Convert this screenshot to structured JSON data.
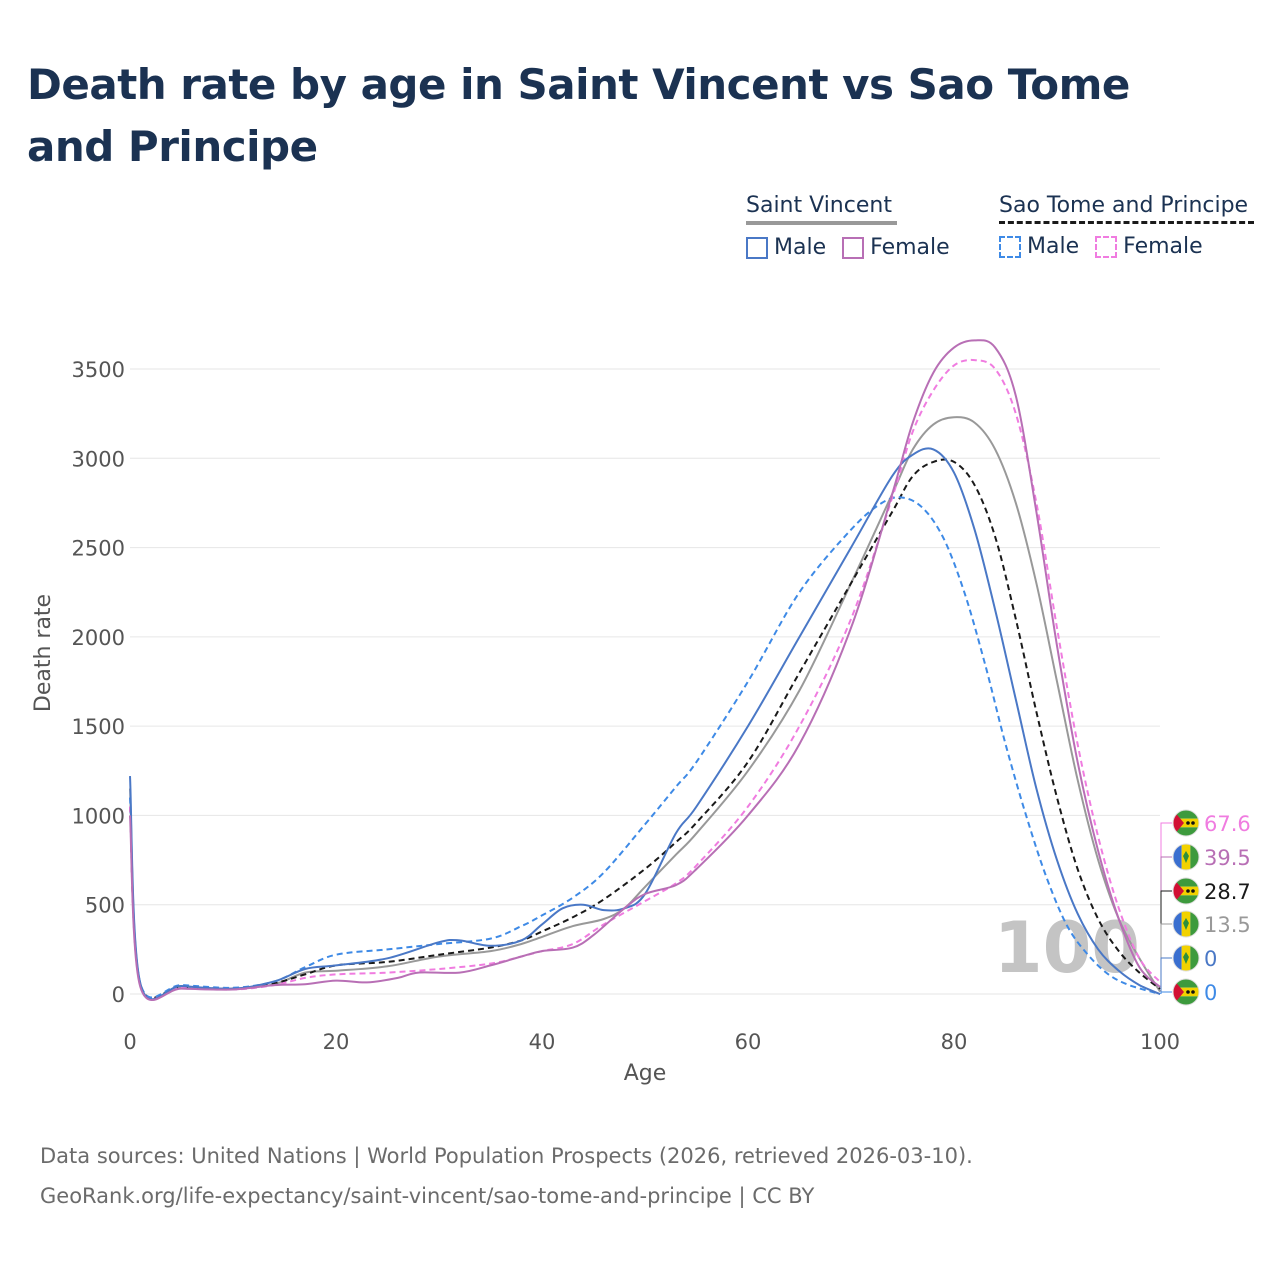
{
  "title": "Death rate by age in Saint Vincent vs Sao Tome and Principe",
  "legend": {
    "group1": {
      "title": "Saint Vincent",
      "male": "Male",
      "female": "Female"
    },
    "group2": {
      "title": "Sao Tome and Principe",
      "male": "Male",
      "female": "Female"
    }
  },
  "footer": {
    "line1": "Data sources: United Nations | World Population Prospects (2026, retrieved 2026-03-10).",
    "line2": "GeoRank.org/life-expectancy/saint-vincent/sao-tome-and-principe | CC BY"
  },
  "watermark": "100",
  "colors": {
    "sv_male": "#4a78c6",
    "sv_female": "#b86fb5",
    "sv_total": "#999999",
    "st_male": "#3e8ae6",
    "st_female": "#f07ce0",
    "st_total": "#1a1a1a",
    "title": "#1b3252"
  },
  "chart_data": {
    "type": "line",
    "title": "Death rate by age in Saint Vincent vs Sao Tome and Principe",
    "xlabel": "Age",
    "ylabel": "Death rate",
    "xlim": [
      0,
      100
    ],
    "ylim": [
      0,
      3650
    ],
    "x_ticks": [
      0,
      20,
      40,
      60,
      80,
      100
    ],
    "y_ticks": [
      0,
      500,
      1000,
      1500,
      2000,
      2500,
      3000,
      3500
    ],
    "series": [
      {
        "key": "sv_total",
        "name": "Saint Vincent",
        "style": "solid",
        "points": [
          [
            0,
            1150
          ],
          [
            1,
            55
          ],
          [
            5,
            40
          ],
          [
            10,
            30
          ],
          [
            14,
            55
          ],
          [
            17,
            120
          ],
          [
            20,
            130
          ],
          [
            25,
            155
          ],
          [
            30,
            210
          ],
          [
            35,
            240
          ],
          [
            38,
            280
          ],
          [
            40,
            320
          ],
          [
            43,
            380
          ],
          [
            46,
            420
          ],
          [
            48,
            480
          ],
          [
            50,
            600
          ],
          [
            53,
            780
          ],
          [
            55,
            900
          ],
          [
            60,
            1250
          ],
          [
            65,
            1700
          ],
          [
            70,
            2300
          ],
          [
            74,
            2800
          ],
          [
            76,
            3050
          ],
          [
            78,
            3190
          ],
          [
            80,
            3230
          ],
          [
            82,
            3200
          ],
          [
            84,
            3050
          ],
          [
            86,
            2750
          ],
          [
            88,
            2300
          ],
          [
            90,
            1750
          ],
          [
            92,
            1200
          ],
          [
            94,
            750
          ],
          [
            96,
            420
          ],
          [
            98,
            200
          ],
          [
            100,
            13.5
          ]
        ]
      },
      {
        "key": "sv_male",
        "name": "Saint Vincent Male",
        "style": "solid",
        "points": [
          [
            0,
            1220
          ],
          [
            1,
            60
          ],
          [
            5,
            45
          ],
          [
            10,
            30
          ],
          [
            14,
            70
          ],
          [
            17,
            140
          ],
          [
            20,
            160
          ],
          [
            25,
            200
          ],
          [
            30,
            290
          ],
          [
            32,
            300
          ],
          [
            35,
            270
          ],
          [
            38,
            300
          ],
          [
            40,
            390
          ],
          [
            42,
            480
          ],
          [
            44,
            500
          ],
          [
            46,
            470
          ],
          [
            48,
            480
          ],
          [
            50,
            560
          ],
          [
            53,
            900
          ],
          [
            55,
            1050
          ],
          [
            60,
            1500
          ],
          [
            65,
            2000
          ],
          [
            70,
            2500
          ],
          [
            74,
            2900
          ],
          [
            76,
            3020
          ],
          [
            78,
            3050
          ],
          [
            80,
            2920
          ],
          [
            82,
            2600
          ],
          [
            84,
            2150
          ],
          [
            86,
            1650
          ],
          [
            88,
            1150
          ],
          [
            90,
            750
          ],
          [
            92,
            450
          ],
          [
            94,
            250
          ],
          [
            96,
            130
          ],
          [
            98,
            50
          ],
          [
            100,
            0
          ]
        ]
      },
      {
        "key": "sv_female",
        "name": "Saint Vincent Female",
        "style": "solid",
        "points": [
          [
            0,
            1000
          ],
          [
            1,
            40
          ],
          [
            5,
            30
          ],
          [
            10,
            25
          ],
          [
            14,
            50
          ],
          [
            17,
            55
          ],
          [
            20,
            75
          ],
          [
            23,
            65
          ],
          [
            26,
            90
          ],
          [
            28,
            120
          ],
          [
            32,
            120
          ],
          [
            35,
            160
          ],
          [
            38,
            210
          ],
          [
            40,
            240
          ],
          [
            43,
            260
          ],
          [
            45,
            330
          ],
          [
            48,
            480
          ],
          [
            50,
            560
          ],
          [
            53,
            610
          ],
          [
            55,
            700
          ],
          [
            60,
            1000
          ],
          [
            65,
            1400
          ],
          [
            70,
            2050
          ],
          [
            74,
            2800
          ],
          [
            76,
            3200
          ],
          [
            78,
            3480
          ],
          [
            80,
            3620
          ],
          [
            82,
            3660
          ],
          [
            84,
            3620
          ],
          [
            86,
            3350
          ],
          [
            88,
            2700
          ],
          [
            90,
            1950
          ],
          [
            92,
            1300
          ],
          [
            94,
            800
          ],
          [
            96,
            420
          ],
          [
            98,
            150
          ],
          [
            100,
            39.5
          ]
        ]
      },
      {
        "key": "st_total",
        "name": "Sao Tome and Principe",
        "style": "dashed",
        "points": [
          [
            0,
            1050
          ],
          [
            1,
            55
          ],
          [
            5,
            40
          ],
          [
            10,
            30
          ],
          [
            14,
            60
          ],
          [
            17,
            110
          ],
          [
            20,
            160
          ],
          [
            25,
            180
          ],
          [
            30,
            220
          ],
          [
            35,
            260
          ],
          [
            38,
            300
          ],
          [
            40,
            350
          ],
          [
            43,
            430
          ],
          [
            46,
            530
          ],
          [
            50,
            700
          ],
          [
            53,
            850
          ],
          [
            55,
            960
          ],
          [
            60,
            1300
          ],
          [
            65,
            1800
          ],
          [
            70,
            2300
          ],
          [
            74,
            2700
          ],
          [
            76,
            2900
          ],
          [
            78,
            2980
          ],
          [
            80,
            2980
          ],
          [
            82,
            2850
          ],
          [
            84,
            2560
          ],
          [
            86,
            2100
          ],
          [
            88,
            1580
          ],
          [
            90,
            1100
          ],
          [
            92,
            700
          ],
          [
            94,
            420
          ],
          [
            96,
            240
          ],
          [
            98,
            120
          ],
          [
            100,
            28.7
          ]
        ]
      },
      {
        "key": "st_male",
        "name": "Sao Tome and Principe Male",
        "style": "dashed",
        "points": [
          [
            0,
            1100
          ],
          [
            1,
            60
          ],
          [
            5,
            50
          ],
          [
            10,
            35
          ],
          [
            14,
            70
          ],
          [
            17,
            150
          ],
          [
            20,
            220
          ],
          [
            25,
            250
          ],
          [
            30,
            280
          ],
          [
            35,
            310
          ],
          [
            38,
            380
          ],
          [
            40,
            440
          ],
          [
            43,
            540
          ],
          [
            46,
            680
          ],
          [
            50,
            950
          ],
          [
            53,
            1160
          ],
          [
            55,
            1300
          ],
          [
            60,
            1750
          ],
          [
            65,
            2250
          ],
          [
            70,
            2600
          ],
          [
            73,
            2750
          ],
          [
            75,
            2780
          ],
          [
            77,
            2720
          ],
          [
            79,
            2550
          ],
          [
            81,
            2250
          ],
          [
            83,
            1850
          ],
          [
            85,
            1400
          ],
          [
            87,
            1000
          ],
          [
            89,
            650
          ],
          [
            91,
            380
          ],
          [
            93,
            220
          ],
          [
            95,
            110
          ],
          [
            97,
            50
          ],
          [
            100,
            0
          ]
        ]
      },
      {
        "key": "st_female",
        "name": "Sao Tome and Principe Female",
        "style": "dashed",
        "points": [
          [
            0,
            1050
          ],
          [
            1,
            50
          ],
          [
            5,
            35
          ],
          [
            10,
            25
          ],
          [
            14,
            50
          ],
          [
            17,
            90
          ],
          [
            20,
            110
          ],
          [
            25,
            120
          ],
          [
            30,
            140
          ],
          [
            35,
            170
          ],
          [
            38,
            210
          ],
          [
            40,
            240
          ],
          [
            43,
            280
          ],
          [
            46,
            390
          ],
          [
            50,
            520
          ],
          [
            53,
            620
          ],
          [
            55,
            720
          ],
          [
            60,
            1050
          ],
          [
            65,
            1500
          ],
          [
            70,
            2100
          ],
          [
            74,
            2780
          ],
          [
            76,
            3150
          ],
          [
            78,
            3380
          ],
          [
            80,
            3520
          ],
          [
            82,
            3550
          ],
          [
            84,
            3500
          ],
          [
            86,
            3250
          ],
          [
            88,
            2750
          ],
          [
            90,
            2050
          ],
          [
            92,
            1400
          ],
          [
            94,
            880
          ],
          [
            96,
            480
          ],
          [
            98,
            200
          ],
          [
            100,
            67.6
          ]
        ]
      }
    ],
    "end_labels": [
      {
        "key": "st_female",
        "text": "67.6",
        "flag": "sao-tome-flag"
      },
      {
        "key": "sv_female",
        "text": "39.5",
        "flag": "saint-vincent-flag"
      },
      {
        "key": "st_total",
        "text": "28.7",
        "flag": "sao-tome-flag"
      },
      {
        "key": "sv_total",
        "text": "13.5",
        "flag": "saint-vincent-flag"
      },
      {
        "key": "sv_male",
        "text": "0",
        "flag": "saint-vincent-flag"
      },
      {
        "key": "st_male",
        "text": "0",
        "flag": "sao-tome-flag"
      }
    ]
  }
}
